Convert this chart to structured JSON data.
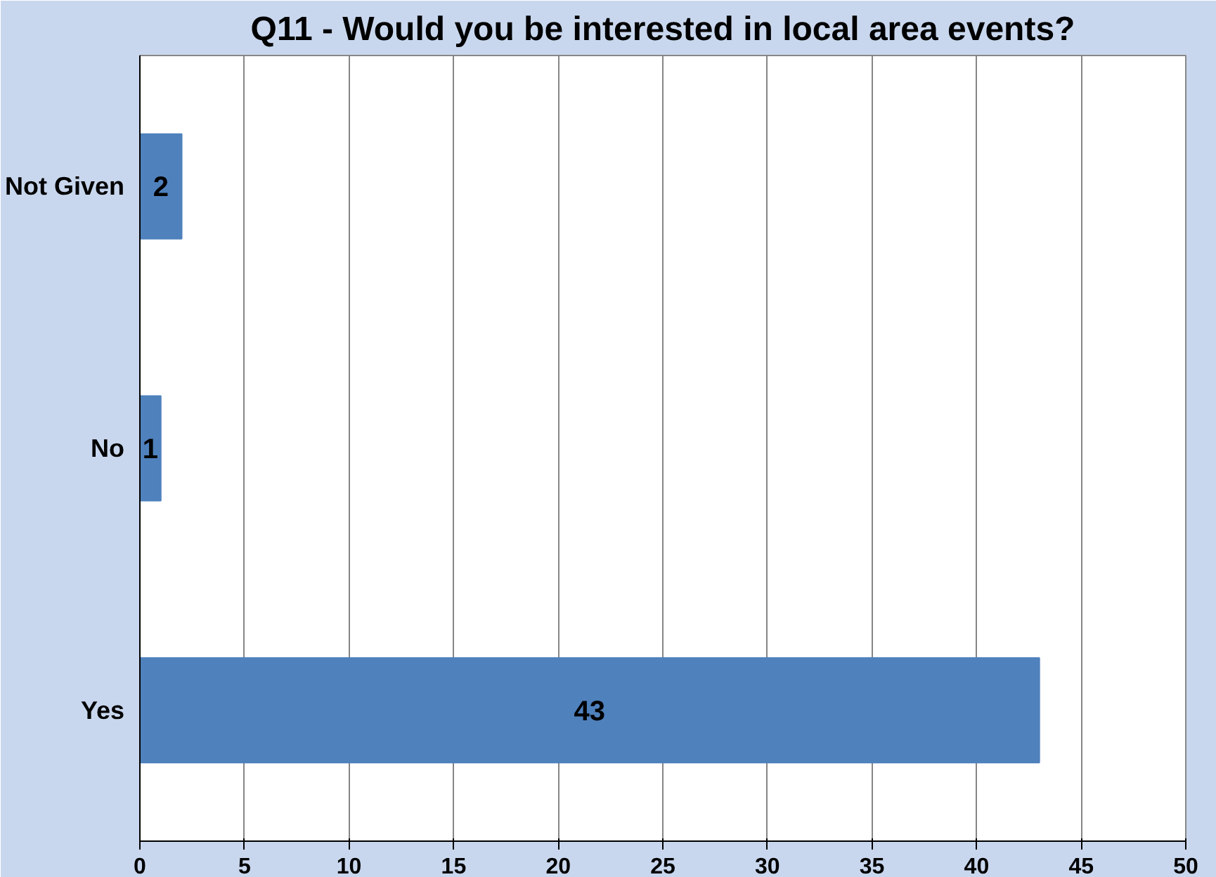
{
  "chart_data": {
    "type": "bar",
    "orientation": "horizontal",
    "title": "Q11 - Would you be interested in local area events?",
    "categories": [
      "Not Given",
      "No",
      "Yes"
    ],
    "values": [
      2,
      1,
      43
    ],
    "color": "#4f81bd",
    "xlim": [
      0,
      50
    ],
    "xticks": [
      0,
      5,
      10,
      15,
      20,
      25,
      30,
      35,
      40,
      45,
      50
    ],
    "grid": "x",
    "data_labels": true
  }
}
